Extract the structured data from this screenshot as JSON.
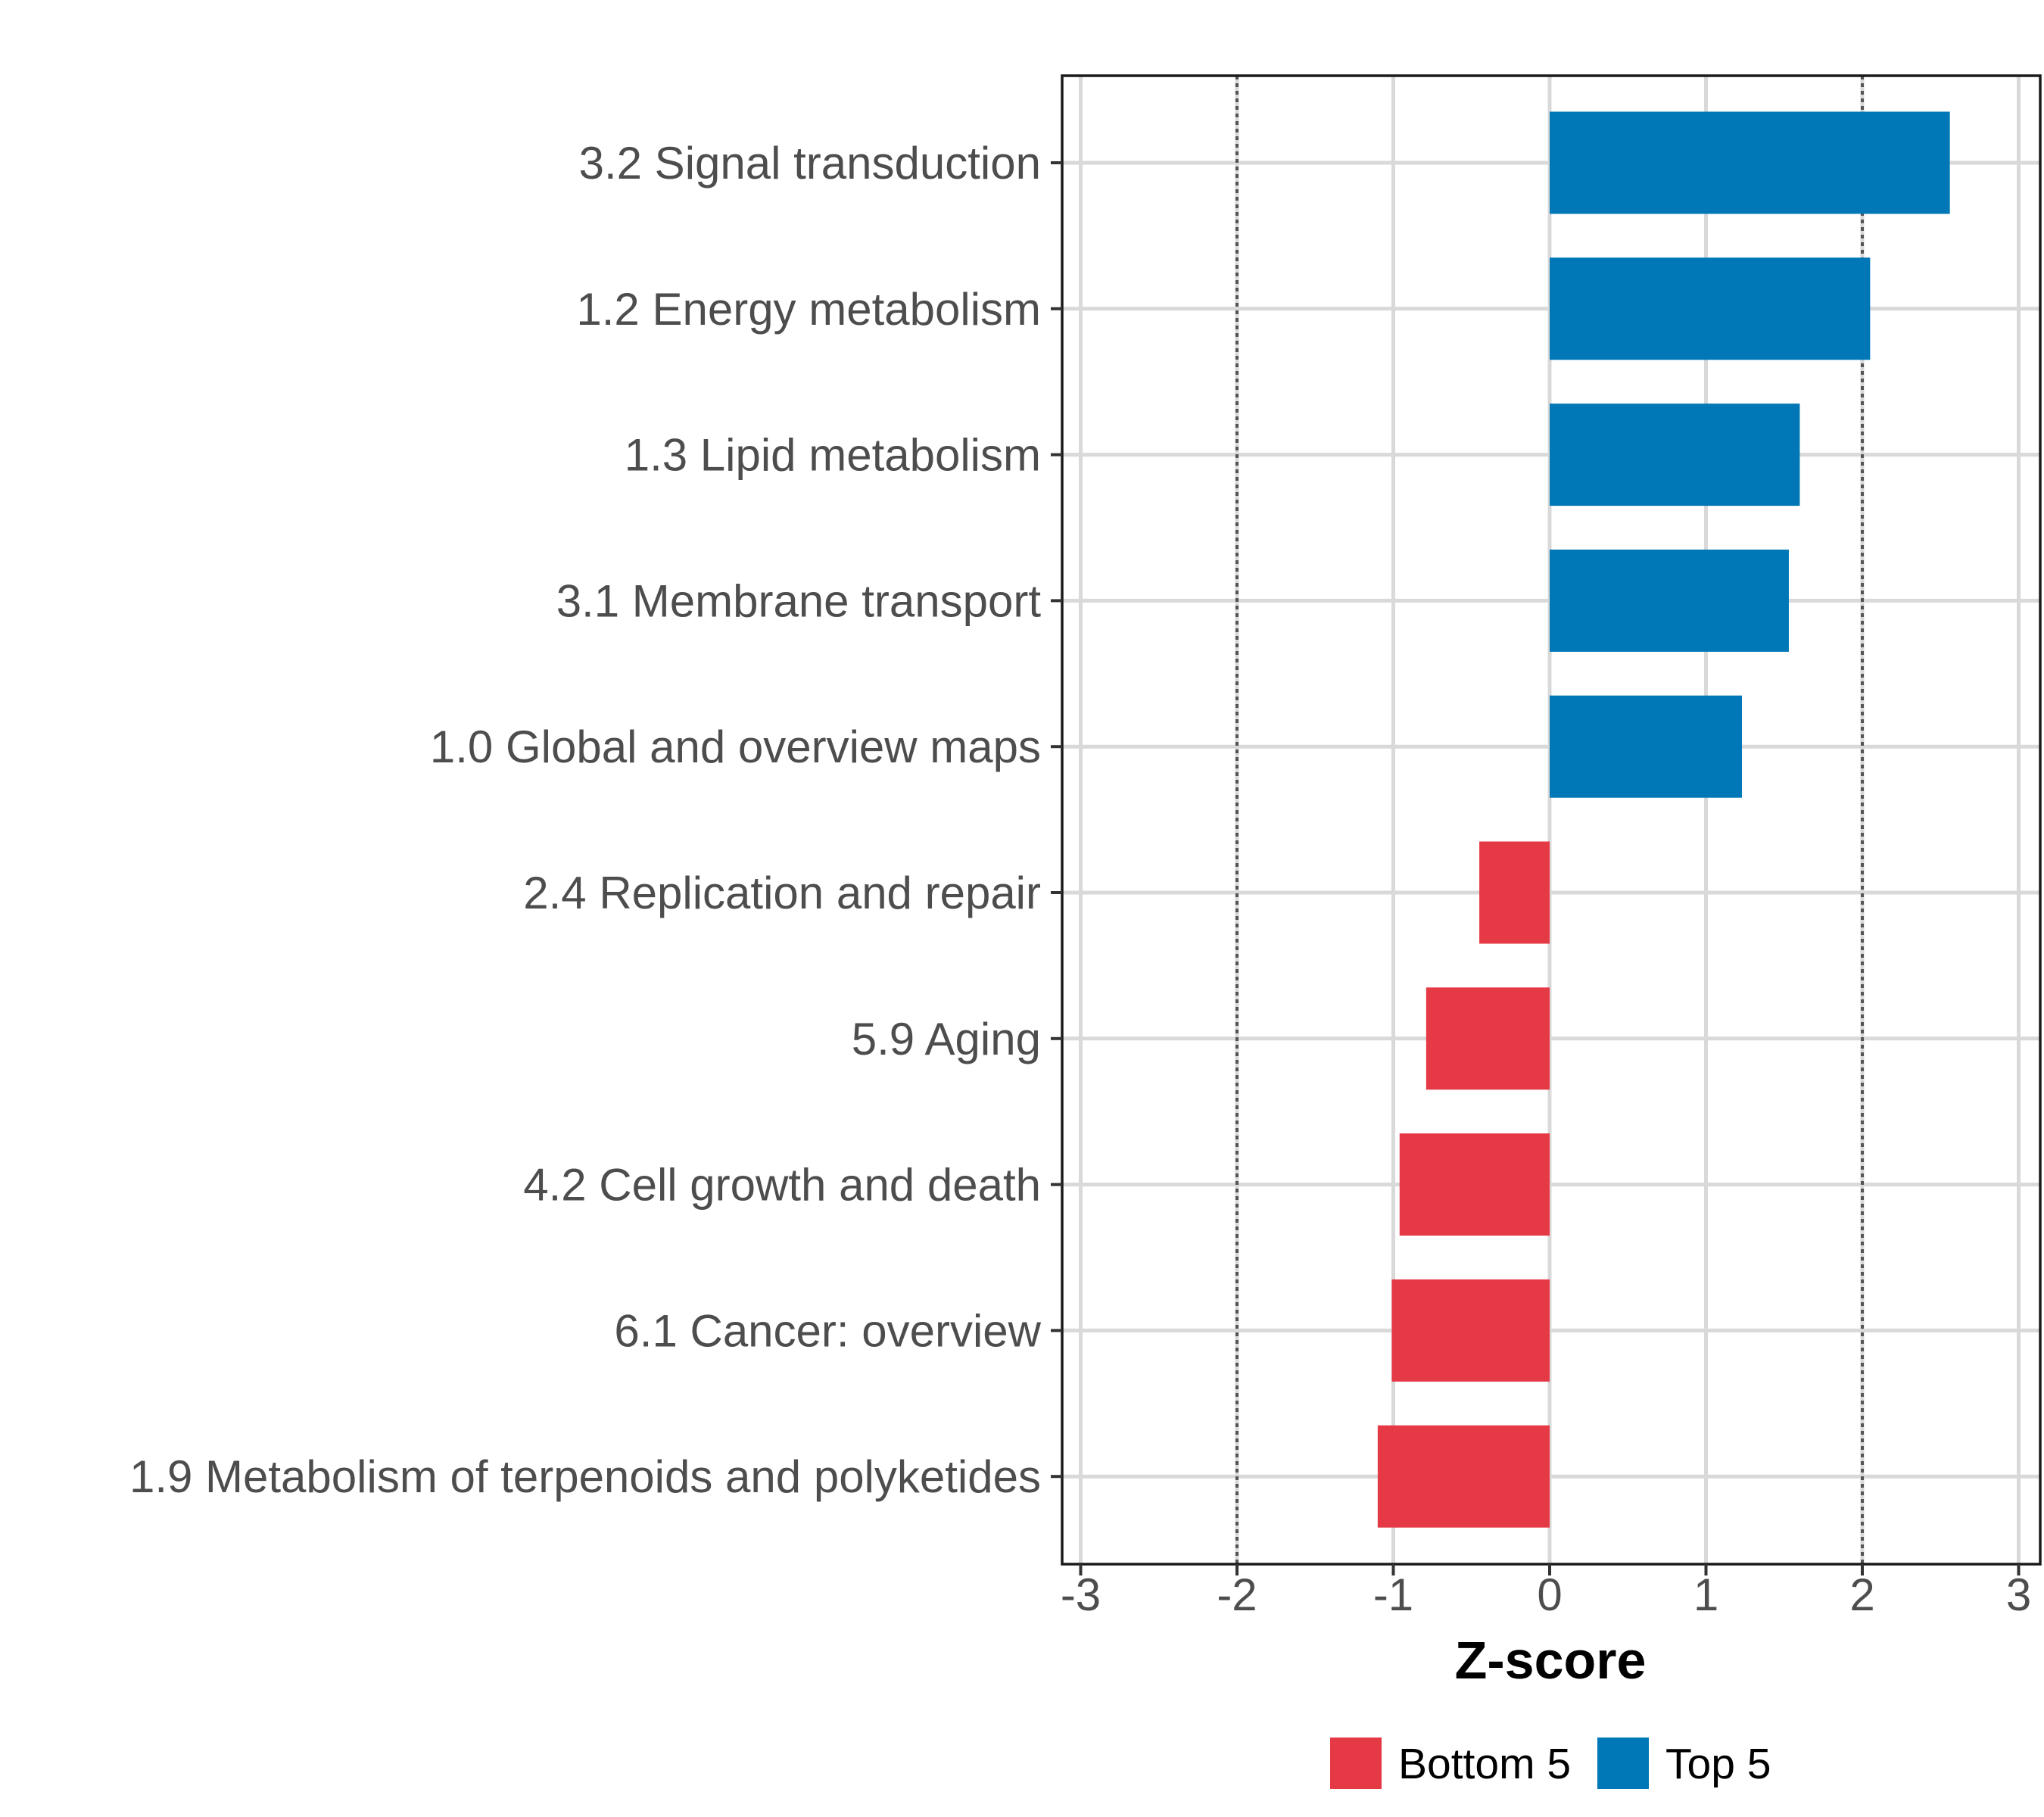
{
  "chart_data": {
    "type": "bar",
    "orientation": "horizontal",
    "xlabel": "Z-score",
    "ylabel": "",
    "xlim": [
      -3.1,
      3.1
    ],
    "x_ticks": [
      -3,
      -2,
      -1,
      0,
      1,
      2,
      3
    ],
    "x_tick_labels": [
      "-3",
      "-2",
      "-1",
      "0",
      "1",
      "2",
      "3"
    ],
    "reference_lines": [
      -2,
      2
    ],
    "grid": true,
    "legend_position": "bottom",
    "categories": [
      "3.2 Signal transduction",
      "1.2 Energy metabolism",
      "1.3 Lipid metabolism",
      "3.1 Membrane transport",
      "1.0 Global and overview maps",
      "2.4 Replication and repair",
      "5.9 Aging",
      "4.2 Cell growth and death",
      "6.1 Cancer: overview",
      "1.9 Metabolism of terpenoids and polyketides"
    ],
    "values": [
      2.56,
      2.05,
      1.6,
      1.53,
      1.23,
      -0.45,
      -0.79,
      -0.96,
      -1.01,
      -1.1
    ],
    "groups": [
      "Top 5",
      "Top 5",
      "Top 5",
      "Top 5",
      "Top 5",
      "Bottom 5",
      "Bottom 5",
      "Bottom 5",
      "Bottom 5",
      "Bottom 5"
    ],
    "legend": [
      {
        "name": "Bottom 5",
        "color": "#E63946"
      },
      {
        "name": "Top 5",
        "color": "#0077B6"
      }
    ]
  }
}
